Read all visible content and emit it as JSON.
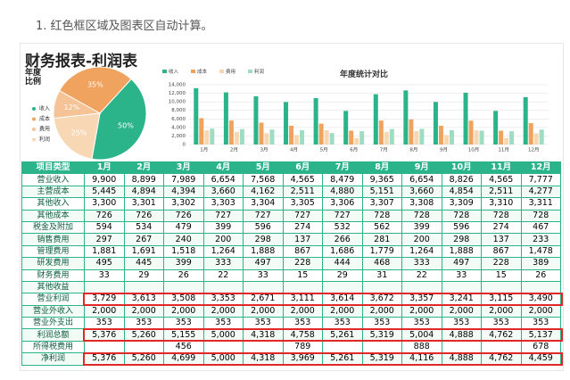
{
  "caption": "1. 红色框区域及图表区自动计算。",
  "sheet_title": "财务报表-利润表",
  "chart_data": [
    {
      "type": "pie",
      "title": "年度比例",
      "series": [
        {
          "name": "收入",
          "color": "#2bb38a",
          "value": 50,
          "value_label": "50%"
        },
        {
          "name": "成本",
          "color": "#f0a35e",
          "value": 35,
          "value_label": "35%"
        },
        {
          "name": "费用",
          "color": "#f5c396",
          "value": 12,
          "value_label": "12%"
        },
        {
          "name": "利润",
          "color": "#f8d7b5",
          "value": 25,
          "value_label": "25%"
        }
      ]
    },
    {
      "type": "bar",
      "title": "年度统计对比",
      "categories": [
        "1月",
        "2月",
        "3月",
        "4月",
        "5月",
        "6月",
        "7月",
        "8月",
        "9月",
        "10月",
        "11月",
        "12月"
      ],
      "series": [
        {
          "name": "收入",
          "color": "#2bb38a",
          "values": [
            13200,
            12200,
            11291,
            9957,
            10872,
            7870,
            11785,
            12672,
            9962,
            12135,
            7875,
            11088
          ]
        },
        {
          "name": "成本",
          "color": "#f0a35e",
          "values": [
            6171,
            5620,
            5120,
            4387,
            4889,
            3238,
            5607,
            5879,
            4388,
            5582,
            3239,
            5005
          ]
        },
        {
          "name": "费用",
          "color": "#f7d7b0",
          "values": [
            3300,
            2966,
            2662,
            2218,
            3312,
            1521,
            2957,
            3121,
            2218,
            3312,
            1521,
            2593
          ]
        },
        {
          "name": "利润",
          "color": "#9fdcc4",
          "values": [
            3729,
            3613,
            3508,
            3353,
            2671,
            3111,
            3614,
            3672,
            3357,
            3241,
            3115,
            3490
          ]
        }
      ],
      "ylim": [
        0,
        14000
      ],
      "yticks": [
        0,
        {
          "value": 2000,
          "label": "2,000"
        },
        {
          "value": 4000,
          "label": "4,000"
        },
        {
          "value": 6000,
          "label": "6,000"
        },
        {
          "value": 8000,
          "label": "8,000"
        },
        {
          "value": 10000,
          "label": "10,000"
        },
        {
          "value": 12000,
          "label": "12,000"
        },
        {
          "value": 14000,
          "label": "14,000"
        }
      ]
    }
  ],
  "table": {
    "header": [
      "项目类型",
      "1月",
      "2月",
      "3月",
      "4月",
      "5月",
      "6月",
      "7月",
      "8月",
      "9月",
      "10月",
      "11月",
      "12月"
    ],
    "rows": [
      [
        "营业收入",
        "9,900",
        "8,899",
        "7,989",
        "6,654",
        "7,568",
        "4,565",
        "8,479",
        "9,365",
        "6,654",
        "8,826",
        "4,565",
        "7,777"
      ],
      [
        "主营成本",
        "5,445",
        "4,894",
        "4,394",
        "3,660",
        "4,162",
        "2,511",
        "4,880",
        "5,151",
        "3,660",
        "4,854",
        "2,511",
        "4,277"
      ],
      [
        "其他收入",
        "3,300",
        "3,301",
        "3,302",
        "3,303",
        "3,304",
        "3,305",
        "3,306",
        "3,307",
        "3,308",
        "3,309",
        "3,310",
        "3,311"
      ],
      [
        "其他成本",
        "726",
        "726",
        "726",
        "727",
        "727",
        "727",
        "727",
        "728",
        "728",
        "728",
        "728",
        "728"
      ],
      [
        "税金及附加",
        "594",
        "534",
        "479",
        "399",
        "596",
        "274",
        "532",
        "562",
        "399",
        "596",
        "274",
        "467"
      ],
      [
        "销售费用",
        "297",
        "267",
        "240",
        "200",
        "298",
        "137",
        "266",
        "281",
        "200",
        "298",
        "137",
        "233"
      ],
      [
        "管理费用",
        "1,881",
        "1,691",
        "1,518",
        "1,264",
        "1,888",
        "867",
        "1,686",
        "1,779",
        "1,264",
        "1,888",
        "867",
        "1,478"
      ],
      [
        "研发费用",
        "495",
        "445",
        "399",
        "333",
        "497",
        "228",
        "444",
        "468",
        "333",
        "497",
        "228",
        "389"
      ],
      [
        "财务费用",
        "33",
        "29",
        "26",
        "22",
        "33",
        "15",
        "29",
        "31",
        "22",
        "33",
        "15",
        "26"
      ],
      [
        "其他收益",
        null,
        null,
        null,
        null,
        null,
        null,
        null,
        null,
        null,
        null,
        null,
        null
      ],
      [
        "营业利润",
        "3,729",
        "3,613",
        "3,508",
        "3,353",
        "2,671",
        "3,111",
        "3,614",
        "3,672",
        "3,357",
        "3,241",
        "3,115",
        "3,490"
      ],
      [
        "营业外收入",
        "2,000",
        "2,000",
        "2,000",
        "2,000",
        "2,000",
        "2,000",
        "2,000",
        "2,000",
        "2,000",
        "2,000",
        "2,000",
        "2,000"
      ],
      [
        "营业外支出",
        "353",
        "353",
        "353",
        "353",
        "353",
        "353",
        "353",
        "353",
        "353",
        "353",
        "353",
        "353"
      ],
      [
        "利润总额",
        "5,376",
        "5,260",
        "5,155",
        "5,000",
        "4,318",
        "4,758",
        "5,261",
        "5,319",
        "5,004",
        "4,888",
        "4,762",
        "5,137"
      ],
      [
        "所得税费用",
        null,
        null,
        "456",
        null,
        null,
        "789",
        null,
        null,
        "888",
        null,
        null,
        "678"
      ],
      [
        "净利润",
        "5,376",
        "5,260",
        "4,699",
        "5,000",
        "4,318",
        "3,969",
        "5,261",
        "5,319",
        "4,116",
        "4,888",
        "4,762",
        "4,459"
      ]
    ]
  }
}
